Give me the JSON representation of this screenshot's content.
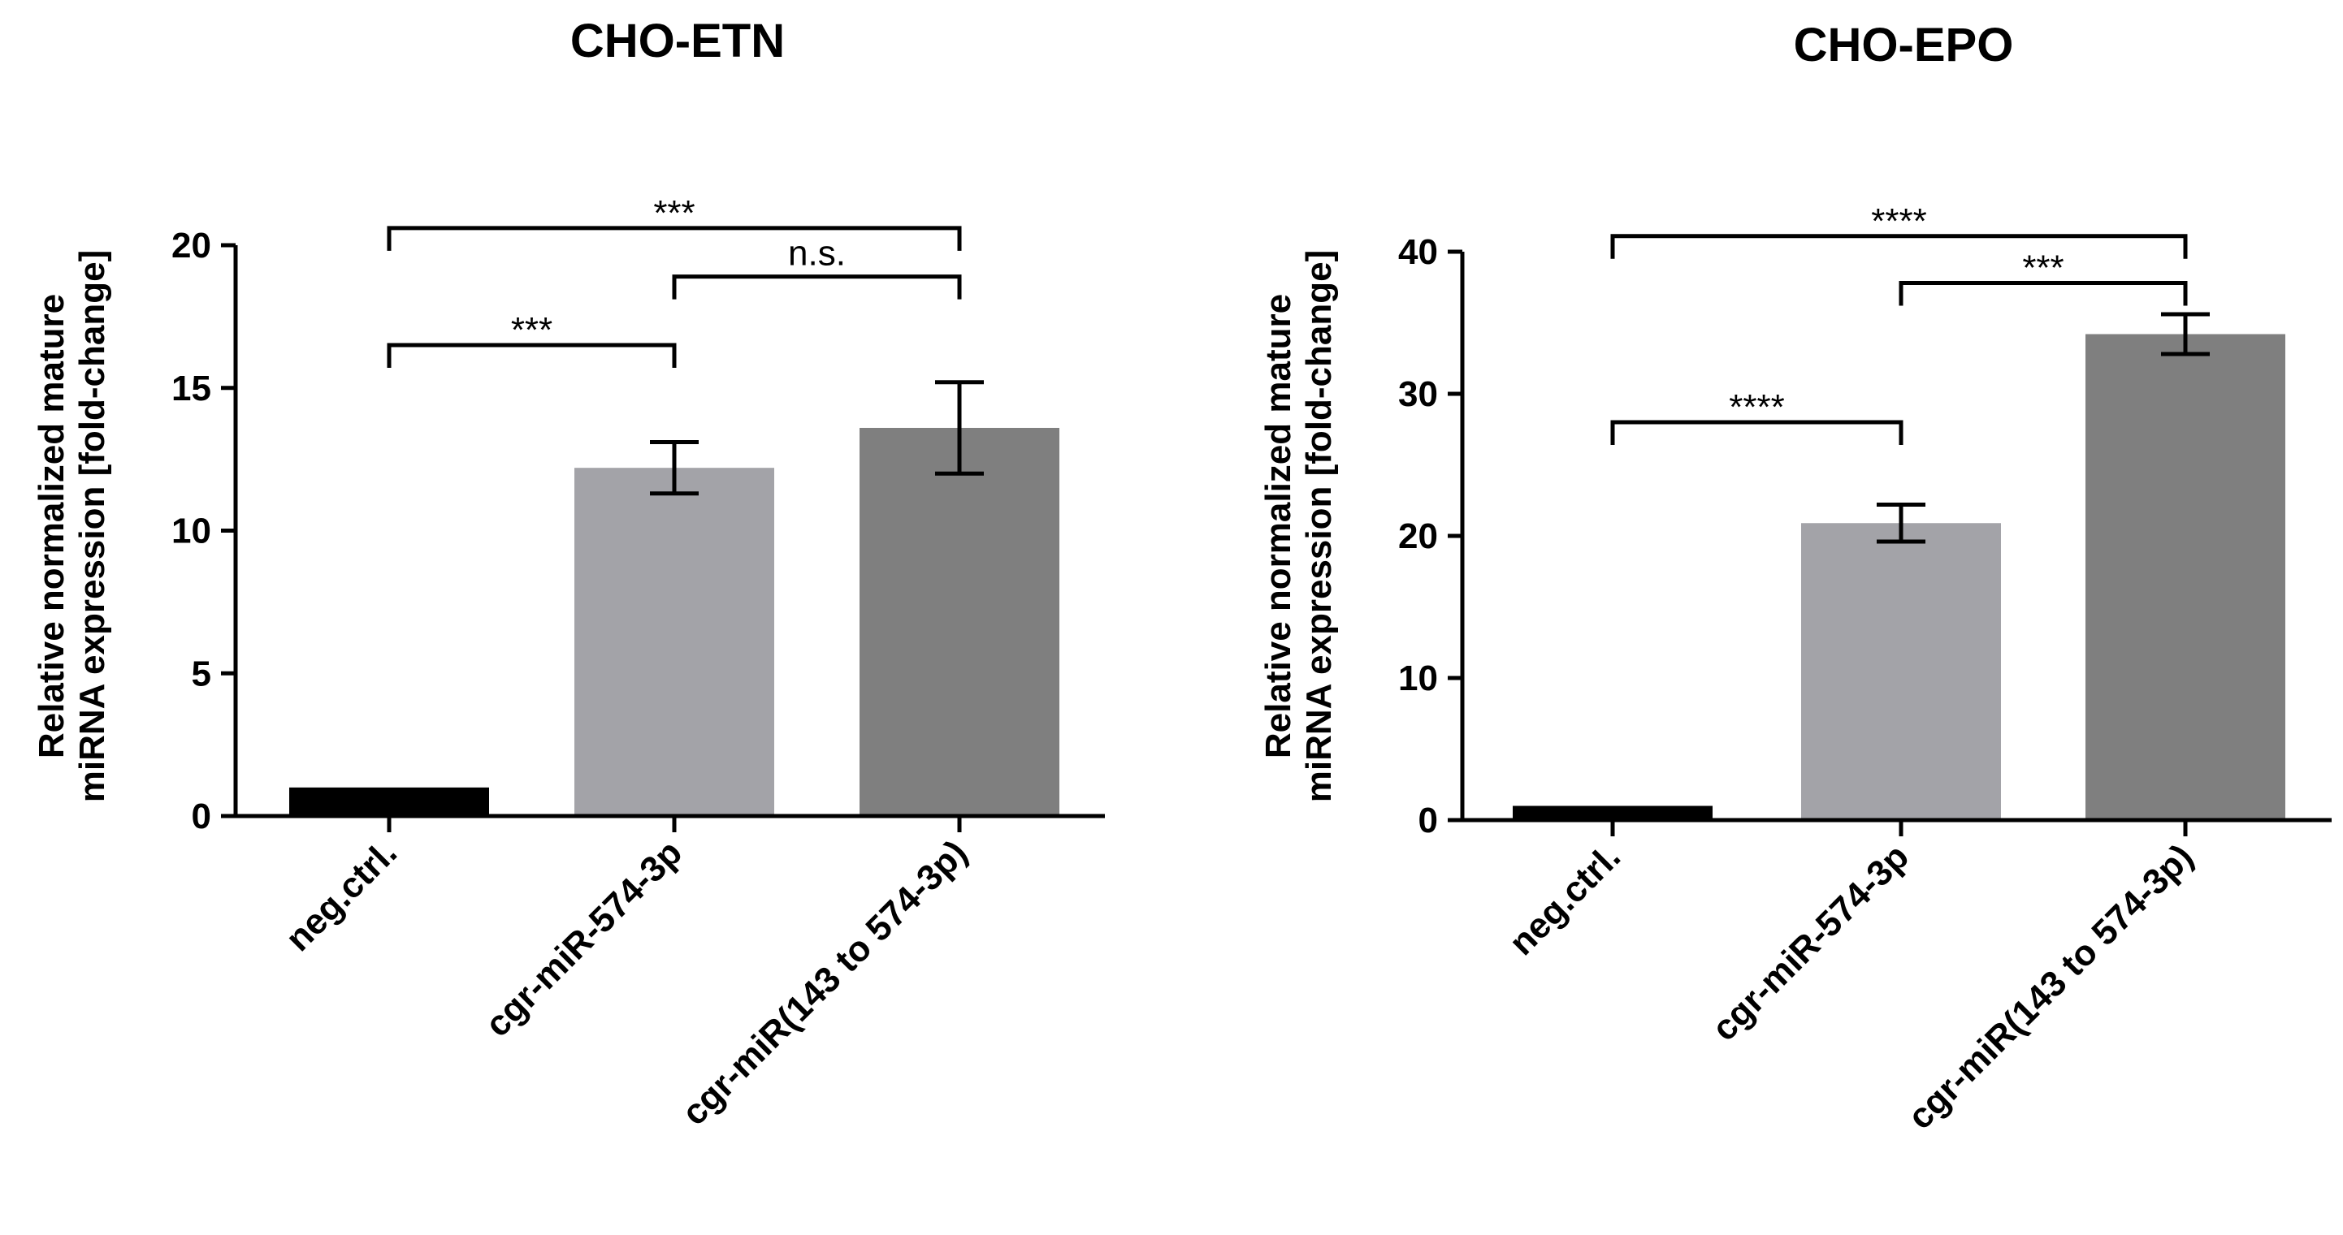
{
  "chart_data": [
    {
      "type": "bar",
      "title": "CHO-ETN",
      "xlabel": "",
      "ylabel": [
        "Relative normalized mature",
        "miRNA expression [fold-change]"
      ],
      "ylim": [
        0,
        20
      ],
      "yticks": [
        0,
        5,
        10,
        15,
        20
      ],
      "categories": [
        "neg.ctrl.",
        "cgr-miR-574-3p",
        "cgr-miR(143 to  574-3p)"
      ],
      "values": [
        1.0,
        12.2,
        13.6
      ],
      "errors": [
        0,
        0.9,
        1.6
      ],
      "colors": [
        "#000000",
        "#a3a3a8",
        "#7f7f7f"
      ],
      "significance": [
        {
          "from": 0,
          "to": 1,
          "label": "***",
          "y": 16.5
        },
        {
          "from": 1,
          "to": 2,
          "label": "n.s.",
          "y": 18.9
        },
        {
          "from": 0,
          "to": 2,
          "label": "***",
          "y": 20.6
        }
      ]
    },
    {
      "type": "bar",
      "title": "CHO-EPO",
      "xlabel": "",
      "ylabel": [
        "Relative normalized mature",
        "miRNA expression [fold-change]"
      ],
      "ylim": [
        0,
        40
      ],
      "yticks": [
        0,
        10,
        20,
        30,
        40
      ],
      "categories": [
        "neg.ctrl.",
        "cgr-miR-574-3p",
        "cgr-miR(143 to 574-3p)"
      ],
      "values": [
        1.0,
        20.9,
        34.2
      ],
      "errors": [
        0,
        1.3,
        1.4
      ],
      "colors": [
        "#000000",
        "#a3a3a8",
        "#7f7f7f"
      ],
      "significance": [
        {
          "from": 0,
          "to": 1,
          "label": "****",
          "y": 28.0
        },
        {
          "from": 1,
          "to": 2,
          "label": "***",
          "y": 37.8
        },
        {
          "from": 0,
          "to": 2,
          "label": "****",
          "y": 41.1
        }
      ]
    }
  ]
}
